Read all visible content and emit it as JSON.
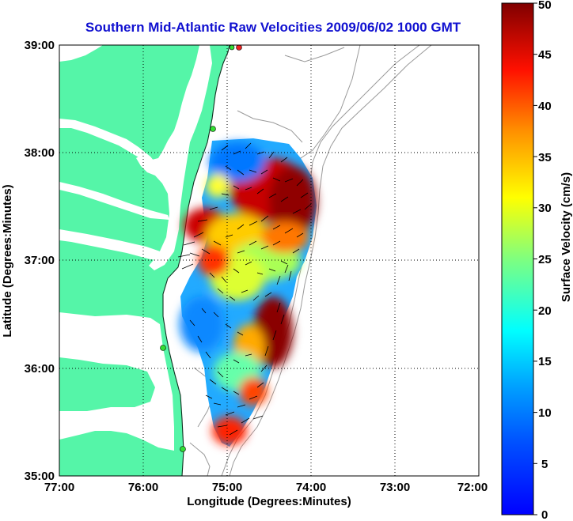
{
  "title": "Southern Mid-Atlantic Raw Velocities 2009/06/02 1000 GMT",
  "xlabel": "Longitude (Degrees:Minutes)",
  "ylabel": "Latitude (Degrees:Minutes)",
  "colorbar_label": "Surface Velocity (cm/s)",
  "x_ticks": [
    "77:00",
    "76:00",
    "75:00",
    "74:00",
    "73:00",
    "72:00"
  ],
  "y_ticks": [
    "39:00",
    "38:00",
    "37:00",
    "36:00",
    "35:00"
  ],
  "colorbar_ticks": [
    "50",
    "45",
    "40",
    "35",
    "30",
    "25",
    "20",
    "15",
    "10",
    "5",
    "0"
  ],
  "colors": {
    "land": "#55f5a8",
    "coast_line": "#103020",
    "bathymetry": "#9a9a9a",
    "title": "#1010d0",
    "site_marker": "#33dd33",
    "site_marker_red": "#ee2222",
    "vector": "#000000"
  },
  "map": {
    "lon_range": [
      -77,
      -72
    ],
    "lat_range": [
      35,
      39
    ],
    "grid": "dotted",
    "colorbar_range": [
      0,
      50
    ],
    "colormap": "jet"
  }
}
